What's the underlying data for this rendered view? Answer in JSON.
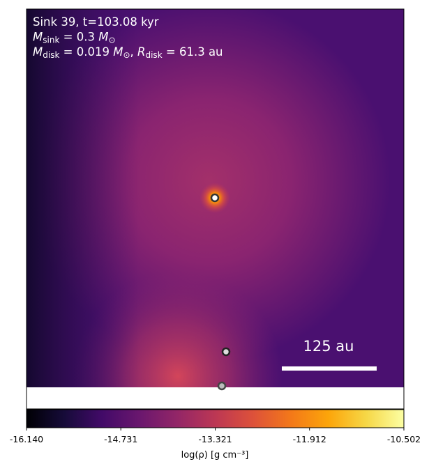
{
  "chart_data": {
    "type": "heatmap",
    "annotations": [
      [
        {
          "t": "Sink 39, t=103.08 kyr",
          "k": "n"
        }
      ],
      [
        {
          "t": "M",
          "k": "i"
        },
        {
          "t": "sink",
          "k": "sub"
        },
        {
          "t": " = 0.3 ",
          "k": "n"
        },
        {
          "t": "M",
          "k": "i"
        },
        {
          "t": "⊙",
          "k": "sub"
        }
      ],
      [
        {
          "t": "M",
          "k": "i"
        },
        {
          "t": "disk",
          "k": "sub"
        },
        {
          "t": " = 0.019 ",
          "k": "n"
        },
        {
          "t": "M",
          "k": "i"
        },
        {
          "t": "⊙",
          "k": "sub"
        },
        {
          "t": ", ",
          "k": "n"
        },
        {
          "t": "R",
          "k": "i"
        },
        {
          "t": "disk",
          "k": "sub"
        },
        {
          "t": " = 61.3 au",
          "k": "n"
        }
      ]
    ],
    "scale_bar_label": "125 au",
    "colorbar": {
      "colormap": "inferno",
      "label": "log(ρ) [g cm⁻³]",
      "clim": [
        -16.14,
        -10.502
      ],
      "ticks": [
        {
          "value": -16.14,
          "label": "-16.140"
        },
        -14.731,
        -13.321,
        -11.912,
        -10.502
      ]
    }
  }
}
